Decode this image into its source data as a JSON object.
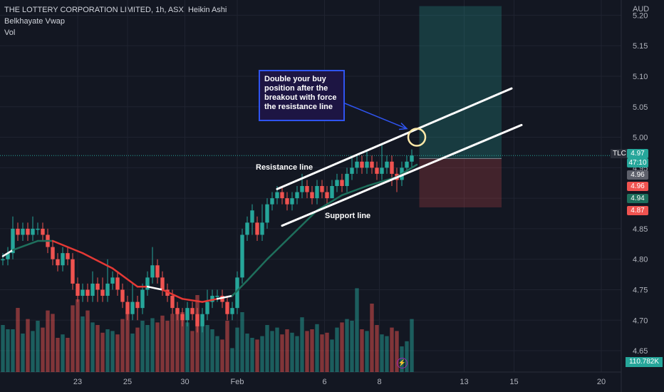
{
  "legend": {
    "symbol_line": "THE LOTTERY CORPORATION LIMITED, 1h, ASX, Heikin Ashi",
    "indicator_1": "Belkhayate Vwap",
    "indicator_2": "Vol"
  },
  "currency": "AUD",
  "colors": {
    "background": "#131722",
    "up": "#26a69a",
    "down": "#ef5350",
    "vwap_down": "#e53935",
    "vwap_up": "#1e6f5c",
    "target_zone": "#26a69a",
    "stop_zone": "#ef5350",
    "annotation_border": "#2f54f0"
  },
  "annotations": {
    "callout": "Double your buy position after the breakout with force the resistance line",
    "resistance_label": "Resistance line",
    "support_label": "Support line"
  },
  "price_tags": {
    "ticker": "TLC",
    "last": "4.97",
    "countdown": "47:10",
    "tag_2": "4.96",
    "tag_3": "4.96",
    "tag_4": "4.94",
    "tag_5": "4.87",
    "volume": "110.782K"
  },
  "chart_data": {
    "type": "candlestick",
    "title": "THE LOTTERY CORPORATION LIMITED, 1h, ASX, Heikin Ashi",
    "y_axis": {
      "range": [
        4.615,
        5.225
      ],
      "ticks": [
        "5.20",
        "5.15",
        "5.10",
        "5.05",
        "5.00",
        "4.95",
        "4.90",
        "4.85",
        "4.80",
        "4.75",
        "4.70",
        "4.65"
      ]
    },
    "x_axis": {
      "ticks": [
        {
          "label": "23",
          "bar": 15
        },
        {
          "label": "25",
          "bar": 25
        },
        {
          "label": "30",
          "bar": 36.5
        },
        {
          "label": "Feb",
          "bar": 47
        },
        {
          "label": "6",
          "bar": 64.5
        },
        {
          "label": "8",
          "bar": 75.5
        },
        {
          "label": "13",
          "bar": 92.5
        },
        {
          "label": "15",
          "bar": 102.5
        },
        {
          "label": "20",
          "bar": 120
        }
      ]
    },
    "candles": [
      {
        "o": 4.8,
        "c": 4.8,
        "h": 4.81,
        "l": 4.79,
        "v": 0.55
      },
      {
        "o": 4.8,
        "c": 4.81,
        "h": 4.82,
        "l": 4.79,
        "v": 0.5
      },
      {
        "o": 4.81,
        "c": 4.85,
        "h": 4.87,
        "l": 4.8,
        "v": 0.5
      },
      {
        "o": 4.85,
        "c": 4.84,
        "h": 4.86,
        "l": 4.83,
        "v": 0.75
      },
      {
        "o": 4.84,
        "c": 4.85,
        "h": 4.86,
        "l": 4.83,
        "v": 0.45
      },
      {
        "o": 4.85,
        "c": 4.84,
        "h": 4.86,
        "l": 4.83,
        "v": 0.62
      },
      {
        "o": 4.84,
        "c": 4.85,
        "h": 4.87,
        "l": 4.83,
        "v": 0.48
      },
      {
        "o": 4.85,
        "c": 4.85,
        "h": 4.86,
        "l": 4.84,
        "v": 0.6
      },
      {
        "o": 4.85,
        "c": 4.84,
        "h": 4.86,
        "l": 4.83,
        "v": 0.52
      },
      {
        "o": 4.84,
        "c": 4.82,
        "h": 4.85,
        "l": 4.81,
        "v": 0.72
      },
      {
        "o": 4.82,
        "c": 4.8,
        "h": 4.83,
        "l": 4.79,
        "v": 0.68
      },
      {
        "o": 4.8,
        "c": 4.79,
        "h": 4.81,
        "l": 4.78,
        "v": 0.4
      },
      {
        "o": 4.79,
        "c": 4.81,
        "h": 4.82,
        "l": 4.78,
        "v": 0.44
      },
      {
        "o": 4.81,
        "c": 4.8,
        "h": 4.82,
        "l": 4.79,
        "v": 0.4
      },
      {
        "o": 4.8,
        "c": 4.76,
        "h": 4.81,
        "l": 4.75,
        "v": 0.78
      },
      {
        "o": 4.76,
        "c": 4.74,
        "h": 4.77,
        "l": 4.73,
        "v": 0.85
      },
      {
        "o": 4.74,
        "c": 4.75,
        "h": 4.76,
        "l": 4.73,
        "v": 0.65
      },
      {
        "o": 4.75,
        "c": 4.74,
        "h": 4.76,
        "l": 4.73,
        "v": 0.72
      },
      {
        "o": 4.74,
        "c": 4.76,
        "h": 4.78,
        "l": 4.73,
        "v": 0.58
      },
      {
        "o": 4.76,
        "c": 4.75,
        "h": 4.77,
        "l": 4.73,
        "v": 0.55
      },
      {
        "o": 4.75,
        "c": 4.74,
        "h": 4.77,
        "l": 4.73,
        "v": 0.46
      },
      {
        "o": 4.74,
        "c": 4.76,
        "h": 4.8,
        "l": 4.73,
        "v": 0.5
      },
      {
        "o": 4.76,
        "c": 4.77,
        "h": 4.78,
        "l": 4.75,
        "v": 0.48
      },
      {
        "o": 4.77,
        "c": 4.75,
        "h": 4.78,
        "l": 4.74,
        "v": 0.44
      },
      {
        "o": 4.75,
        "c": 4.73,
        "h": 4.76,
        "l": 4.72,
        "v": 0.62
      },
      {
        "o": 4.73,
        "c": 4.71,
        "h": 4.74,
        "l": 4.7,
        "v": 0.7
      },
      {
        "o": 4.71,
        "c": 4.73,
        "h": 4.76,
        "l": 4.7,
        "v": 0.45
      },
      {
        "o": 4.73,
        "c": 4.72,
        "h": 4.74,
        "l": 4.7,
        "v": 0.52
      },
      {
        "o": 4.72,
        "c": 4.75,
        "h": 4.76,
        "l": 4.71,
        "v": 0.6
      },
      {
        "o": 4.75,
        "c": 4.77,
        "h": 4.78,
        "l": 4.74,
        "v": 0.55
      },
      {
        "o": 4.77,
        "c": 4.79,
        "h": 4.82,
        "l": 4.76,
        "v": 0.63
      },
      {
        "o": 4.79,
        "c": 4.77,
        "h": 4.8,
        "l": 4.76,
        "v": 0.58
      },
      {
        "o": 4.77,
        "c": 4.75,
        "h": 4.78,
        "l": 4.74,
        "v": 0.66
      },
      {
        "o": 4.75,
        "c": 4.74,
        "h": 4.76,
        "l": 4.73,
        "v": 0.6
      },
      {
        "o": 4.74,
        "c": 4.72,
        "h": 4.75,
        "l": 4.71,
        "v": 0.68
      },
      {
        "o": 4.72,
        "c": 4.71,
        "h": 4.73,
        "l": 4.7,
        "v": 0.74
      },
      {
        "o": 4.71,
        "c": 4.7,
        "h": 4.72,
        "l": 4.69,
        "v": 0.7
      },
      {
        "o": 4.7,
        "c": 4.72,
        "h": 4.73,
        "l": 4.69,
        "v": 0.58
      },
      {
        "o": 4.72,
        "c": 4.71,
        "h": 4.73,
        "l": 4.7,
        "v": 0.48
      },
      {
        "o": 4.71,
        "c": 4.69,
        "h": 4.72,
        "l": 4.68,
        "v": 0.9
      },
      {
        "o": 4.69,
        "c": 4.71,
        "h": 4.72,
        "l": 4.68,
        "v": 0.6
      },
      {
        "o": 4.71,
        "c": 4.73,
        "h": 4.75,
        "l": 4.7,
        "v": 0.55
      },
      {
        "o": 4.73,
        "c": 4.74,
        "h": 4.75,
        "l": 4.72,
        "v": 0.5
      },
      {
        "o": 4.74,
        "c": 4.74,
        "h": 4.75,
        "l": 4.73,
        "v": 0.42
      },
      {
        "o": 4.74,
        "c": 4.73,
        "h": 4.75,
        "l": 4.72,
        "v": 0.38
      },
      {
        "o": 4.73,
        "c": 4.71,
        "h": 4.74,
        "l": 4.7,
        "v": 0.6
      },
      {
        "o": 4.71,
        "c": 4.72,
        "h": 4.73,
        "l": 4.7,
        "v": 0.28
      },
      {
        "o": 4.72,
        "c": 4.77,
        "h": 4.78,
        "l": 4.71,
        "v": 0.52
      },
      {
        "o": 4.77,
        "c": 4.84,
        "h": 4.85,
        "l": 4.76,
        "v": 0.7
      },
      {
        "o": 4.84,
        "c": 4.86,
        "h": 4.87,
        "l": 4.83,
        "v": 0.45
      },
      {
        "o": 4.86,
        "c": 4.88,
        "h": 4.89,
        "l": 4.84,
        "v": 0.4
      },
      {
        "o": 4.86,
        "c": 4.84,
        "h": 4.87,
        "l": 4.83,
        "v": 0.38
      },
      {
        "o": 4.84,
        "c": 4.86,
        "h": 4.89,
        "l": 4.83,
        "v": 0.42
      },
      {
        "o": 4.86,
        "c": 4.89,
        "h": 4.9,
        "l": 4.85,
        "v": 0.55
      },
      {
        "o": 4.89,
        "c": 4.9,
        "h": 4.91,
        "l": 4.88,
        "v": 0.48
      },
      {
        "o": 4.9,
        "c": 4.91,
        "h": 4.92,
        "l": 4.89,
        "v": 0.52
      },
      {
        "o": 4.91,
        "c": 4.9,
        "h": 4.92,
        "l": 4.89,
        "v": 0.44
      },
      {
        "o": 4.9,
        "c": 4.89,
        "h": 4.91,
        "l": 4.88,
        "v": 0.5
      },
      {
        "o": 4.89,
        "c": 4.9,
        "h": 4.91,
        "l": 4.88,
        "v": 0.46
      },
      {
        "o": 4.9,
        "c": 4.91,
        "h": 4.92,
        "l": 4.89,
        "v": 0.42
      },
      {
        "o": 4.91,
        "c": 4.92,
        "h": 4.94,
        "l": 4.9,
        "v": 0.64
      },
      {
        "o": 4.92,
        "c": 4.91,
        "h": 4.93,
        "l": 4.9,
        "v": 0.48
      },
      {
        "o": 4.91,
        "c": 4.9,
        "h": 4.92,
        "l": 4.89,
        "v": 0.5
      },
      {
        "o": 4.9,
        "c": 4.92,
        "h": 4.93,
        "l": 4.89,
        "v": 0.56
      },
      {
        "o": 4.92,
        "c": 4.91,
        "h": 4.93,
        "l": 4.9,
        "v": 0.44
      },
      {
        "o": 4.91,
        "c": 4.9,
        "h": 4.92,
        "l": 4.89,
        "v": 0.46
      },
      {
        "o": 4.9,
        "c": 4.92,
        "h": 4.93,
        "l": 4.9,
        "v": 0.38
      },
      {
        "o": 4.92,
        "c": 4.93,
        "h": 4.94,
        "l": 4.91,
        "v": 0.52
      },
      {
        "o": 4.93,
        "c": 4.92,
        "h": 4.94,
        "l": 4.91,
        "v": 0.58
      },
      {
        "o": 4.92,
        "c": 4.94,
        "h": 4.95,
        "l": 4.91,
        "v": 0.62
      },
      {
        "o": 4.94,
        "c": 4.95,
        "h": 4.97,
        "l": 4.93,
        "v": 0.6
      },
      {
        "o": 4.95,
        "c": 4.96,
        "h": 4.97,
        "l": 4.94,
        "v": 0.98
      },
      {
        "o": 4.96,
        "c": 4.95,
        "h": 4.97,
        "l": 4.94,
        "v": 0.5
      },
      {
        "o": 4.95,
        "c": 4.96,
        "h": 4.98,
        "l": 4.94,
        "v": 0.48
      },
      {
        "o": 4.96,
        "c": 4.95,
        "h": 4.97,
        "l": 4.94,
        "v": 0.8
      },
      {
        "o": 4.95,
        "c": 4.94,
        "h": 4.96,
        "l": 4.93,
        "v": 0.55
      },
      {
        "o": 4.94,
        "c": 4.95,
        "h": 4.99,
        "l": 4.93,
        "v": 0.44
      },
      {
        "o": 4.95,
        "c": 4.96,
        "h": 4.97,
        "l": 4.94,
        "v": 0.42
      },
      {
        "o": 4.96,
        "c": 4.94,
        "h": 4.97,
        "l": 4.92,
        "v": 0.52
      },
      {
        "o": 4.94,
        "c": 4.93,
        "h": 4.95,
        "l": 4.91,
        "v": 0.48
      },
      {
        "o": 4.93,
        "c": 4.95,
        "h": 4.96,
        "l": 4.92,
        "v": 0.3
      },
      {
        "o": 4.95,
        "c": 4.96,
        "h": 4.97,
        "l": 4.94,
        "v": 0.36
      },
      {
        "o": 4.96,
        "c": 4.97,
        "h": 4.98,
        "l": 4.95,
        "v": 0.62
      }
    ],
    "vwap": [
      {
        "x": 0,
        "y": 4.805,
        "color": "#ffffff"
      },
      {
        "x": 2,
        "y": 4.815,
        "color": "#1e6f5c"
      },
      {
        "x": 7,
        "y": 4.83,
        "color": "#1e6f5c"
      },
      {
        "x": 10,
        "y": 4.83,
        "color": "#e53935"
      },
      {
        "x": 16,
        "y": 4.81,
        "color": "#e53935"
      },
      {
        "x": 22,
        "y": 4.785,
        "color": "#e53935"
      },
      {
        "x": 27,
        "y": 4.755,
        "color": "#e53935"
      },
      {
        "x": 29,
        "y": 4.755,
        "color": "#ffffff"
      },
      {
        "x": 32,
        "y": 4.75,
        "color": "#e53935"
      },
      {
        "x": 36,
        "y": 4.735,
        "color": "#e53935"
      },
      {
        "x": 40,
        "y": 4.73,
        "color": "#e53935"
      },
      {
        "x": 43,
        "y": 4.735,
        "color": "#ffffff"
      },
      {
        "x": 46,
        "y": 4.74,
        "color": "#1e6f5c"
      },
      {
        "x": 49,
        "y": 4.765,
        "color": "#1e6f5c"
      },
      {
        "x": 53,
        "y": 4.8,
        "color": "#1e6f5c"
      },
      {
        "x": 58,
        "y": 4.84,
        "color": "#1e6f5c"
      },
      {
        "x": 63,
        "y": 4.88,
        "color": "#1e6f5c"
      },
      {
        "x": 68,
        "y": 4.905,
        "color": "#1e6f5c"
      },
      {
        "x": 73,
        "y": 4.92,
        "color": "#1e6f5c"
      },
      {
        "x": 79,
        "y": 4.935,
        "color": "#1e6f5c"
      },
      {
        "x": 83,
        "y": 4.955,
        "color": "#1e6f5c"
      }
    ],
    "trend_lines": [
      {
        "name": "resistance",
        "from": {
          "x": 55,
          "y": 4.915
        },
        "to": {
          "x": 102,
          "y": 5.08
        }
      },
      {
        "name": "support",
        "from": {
          "x": 56,
          "y": 4.855
        },
        "to": {
          "x": 104,
          "y": 5.02
        }
      }
    ],
    "position": {
      "entry": 4.965,
      "target": 5.215,
      "stop": 4.885,
      "from_bar": 83.5,
      "to_bar": 100
    },
    "breakout_point": {
      "x": 83,
      "y": 5.0
    }
  }
}
